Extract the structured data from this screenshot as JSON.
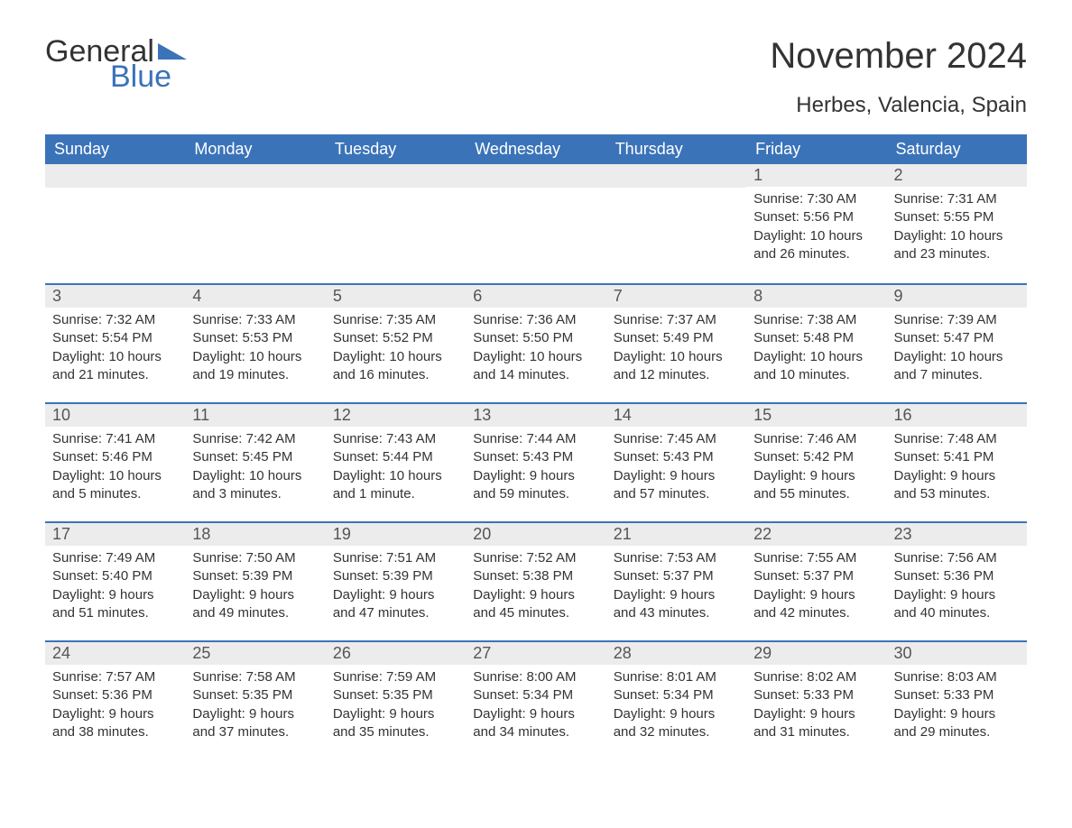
{
  "logo": {
    "text1": "General",
    "text2": "Blue"
  },
  "title": "November 2024",
  "location": "Herbes, Valencia, Spain",
  "colors": {
    "header_bg": "#3b73b9",
    "header_text": "#ffffff",
    "daynum_bg": "#ececec",
    "daynum_border": "#3b73b9",
    "body_text": "#333333"
  },
  "typography": {
    "title_fontsize": 40,
    "location_fontsize": 24,
    "header_fontsize": 18,
    "daynum_fontsize": 18,
    "body_fontsize": 15
  },
  "headers": [
    "Sunday",
    "Monday",
    "Tuesday",
    "Wednesday",
    "Thursday",
    "Friday",
    "Saturday"
  ],
  "weeks": [
    [
      null,
      null,
      null,
      null,
      null,
      {
        "day": "1",
        "sunrise": "Sunrise: 7:30 AM",
        "sunset": "Sunset: 5:56 PM",
        "daylight1": "Daylight: 10 hours",
        "daylight2": "and 26 minutes."
      },
      {
        "day": "2",
        "sunrise": "Sunrise: 7:31 AM",
        "sunset": "Sunset: 5:55 PM",
        "daylight1": "Daylight: 10 hours",
        "daylight2": "and 23 minutes."
      }
    ],
    [
      {
        "day": "3",
        "sunrise": "Sunrise: 7:32 AM",
        "sunset": "Sunset: 5:54 PM",
        "daylight1": "Daylight: 10 hours",
        "daylight2": "and 21 minutes."
      },
      {
        "day": "4",
        "sunrise": "Sunrise: 7:33 AM",
        "sunset": "Sunset: 5:53 PM",
        "daylight1": "Daylight: 10 hours",
        "daylight2": "and 19 minutes."
      },
      {
        "day": "5",
        "sunrise": "Sunrise: 7:35 AM",
        "sunset": "Sunset: 5:52 PM",
        "daylight1": "Daylight: 10 hours",
        "daylight2": "and 16 minutes."
      },
      {
        "day": "6",
        "sunrise": "Sunrise: 7:36 AM",
        "sunset": "Sunset: 5:50 PM",
        "daylight1": "Daylight: 10 hours",
        "daylight2": "and 14 minutes."
      },
      {
        "day": "7",
        "sunrise": "Sunrise: 7:37 AM",
        "sunset": "Sunset: 5:49 PM",
        "daylight1": "Daylight: 10 hours",
        "daylight2": "and 12 minutes."
      },
      {
        "day": "8",
        "sunrise": "Sunrise: 7:38 AM",
        "sunset": "Sunset: 5:48 PM",
        "daylight1": "Daylight: 10 hours",
        "daylight2": "and 10 minutes."
      },
      {
        "day": "9",
        "sunrise": "Sunrise: 7:39 AM",
        "sunset": "Sunset: 5:47 PM",
        "daylight1": "Daylight: 10 hours",
        "daylight2": "and 7 minutes."
      }
    ],
    [
      {
        "day": "10",
        "sunrise": "Sunrise: 7:41 AM",
        "sunset": "Sunset: 5:46 PM",
        "daylight1": "Daylight: 10 hours",
        "daylight2": "and 5 minutes."
      },
      {
        "day": "11",
        "sunrise": "Sunrise: 7:42 AM",
        "sunset": "Sunset: 5:45 PM",
        "daylight1": "Daylight: 10 hours",
        "daylight2": "and 3 minutes."
      },
      {
        "day": "12",
        "sunrise": "Sunrise: 7:43 AM",
        "sunset": "Sunset: 5:44 PM",
        "daylight1": "Daylight: 10 hours",
        "daylight2": "and 1 minute."
      },
      {
        "day": "13",
        "sunrise": "Sunrise: 7:44 AM",
        "sunset": "Sunset: 5:43 PM",
        "daylight1": "Daylight: 9 hours",
        "daylight2": "and 59 minutes."
      },
      {
        "day": "14",
        "sunrise": "Sunrise: 7:45 AM",
        "sunset": "Sunset: 5:43 PM",
        "daylight1": "Daylight: 9 hours",
        "daylight2": "and 57 minutes."
      },
      {
        "day": "15",
        "sunrise": "Sunrise: 7:46 AM",
        "sunset": "Sunset: 5:42 PM",
        "daylight1": "Daylight: 9 hours",
        "daylight2": "and 55 minutes."
      },
      {
        "day": "16",
        "sunrise": "Sunrise: 7:48 AM",
        "sunset": "Sunset: 5:41 PM",
        "daylight1": "Daylight: 9 hours",
        "daylight2": "and 53 minutes."
      }
    ],
    [
      {
        "day": "17",
        "sunrise": "Sunrise: 7:49 AM",
        "sunset": "Sunset: 5:40 PM",
        "daylight1": "Daylight: 9 hours",
        "daylight2": "and 51 minutes."
      },
      {
        "day": "18",
        "sunrise": "Sunrise: 7:50 AM",
        "sunset": "Sunset: 5:39 PM",
        "daylight1": "Daylight: 9 hours",
        "daylight2": "and 49 minutes."
      },
      {
        "day": "19",
        "sunrise": "Sunrise: 7:51 AM",
        "sunset": "Sunset: 5:39 PM",
        "daylight1": "Daylight: 9 hours",
        "daylight2": "and 47 minutes."
      },
      {
        "day": "20",
        "sunrise": "Sunrise: 7:52 AM",
        "sunset": "Sunset: 5:38 PM",
        "daylight1": "Daylight: 9 hours",
        "daylight2": "and 45 minutes."
      },
      {
        "day": "21",
        "sunrise": "Sunrise: 7:53 AM",
        "sunset": "Sunset: 5:37 PM",
        "daylight1": "Daylight: 9 hours",
        "daylight2": "and 43 minutes."
      },
      {
        "day": "22",
        "sunrise": "Sunrise: 7:55 AM",
        "sunset": "Sunset: 5:37 PM",
        "daylight1": "Daylight: 9 hours",
        "daylight2": "and 42 minutes."
      },
      {
        "day": "23",
        "sunrise": "Sunrise: 7:56 AM",
        "sunset": "Sunset: 5:36 PM",
        "daylight1": "Daylight: 9 hours",
        "daylight2": "and 40 minutes."
      }
    ],
    [
      {
        "day": "24",
        "sunrise": "Sunrise: 7:57 AM",
        "sunset": "Sunset: 5:36 PM",
        "daylight1": "Daylight: 9 hours",
        "daylight2": "and 38 minutes."
      },
      {
        "day": "25",
        "sunrise": "Sunrise: 7:58 AM",
        "sunset": "Sunset: 5:35 PM",
        "daylight1": "Daylight: 9 hours",
        "daylight2": "and 37 minutes."
      },
      {
        "day": "26",
        "sunrise": "Sunrise: 7:59 AM",
        "sunset": "Sunset: 5:35 PM",
        "daylight1": "Daylight: 9 hours",
        "daylight2": "and 35 minutes."
      },
      {
        "day": "27",
        "sunrise": "Sunrise: 8:00 AM",
        "sunset": "Sunset: 5:34 PM",
        "daylight1": "Daylight: 9 hours",
        "daylight2": "and 34 minutes."
      },
      {
        "day": "28",
        "sunrise": "Sunrise: 8:01 AM",
        "sunset": "Sunset: 5:34 PM",
        "daylight1": "Daylight: 9 hours",
        "daylight2": "and 32 minutes."
      },
      {
        "day": "29",
        "sunrise": "Sunrise: 8:02 AM",
        "sunset": "Sunset: 5:33 PM",
        "daylight1": "Daylight: 9 hours",
        "daylight2": "and 31 minutes."
      },
      {
        "day": "30",
        "sunrise": "Sunrise: 8:03 AM",
        "sunset": "Sunset: 5:33 PM",
        "daylight1": "Daylight: 9 hours",
        "daylight2": "and 29 minutes."
      }
    ]
  ]
}
